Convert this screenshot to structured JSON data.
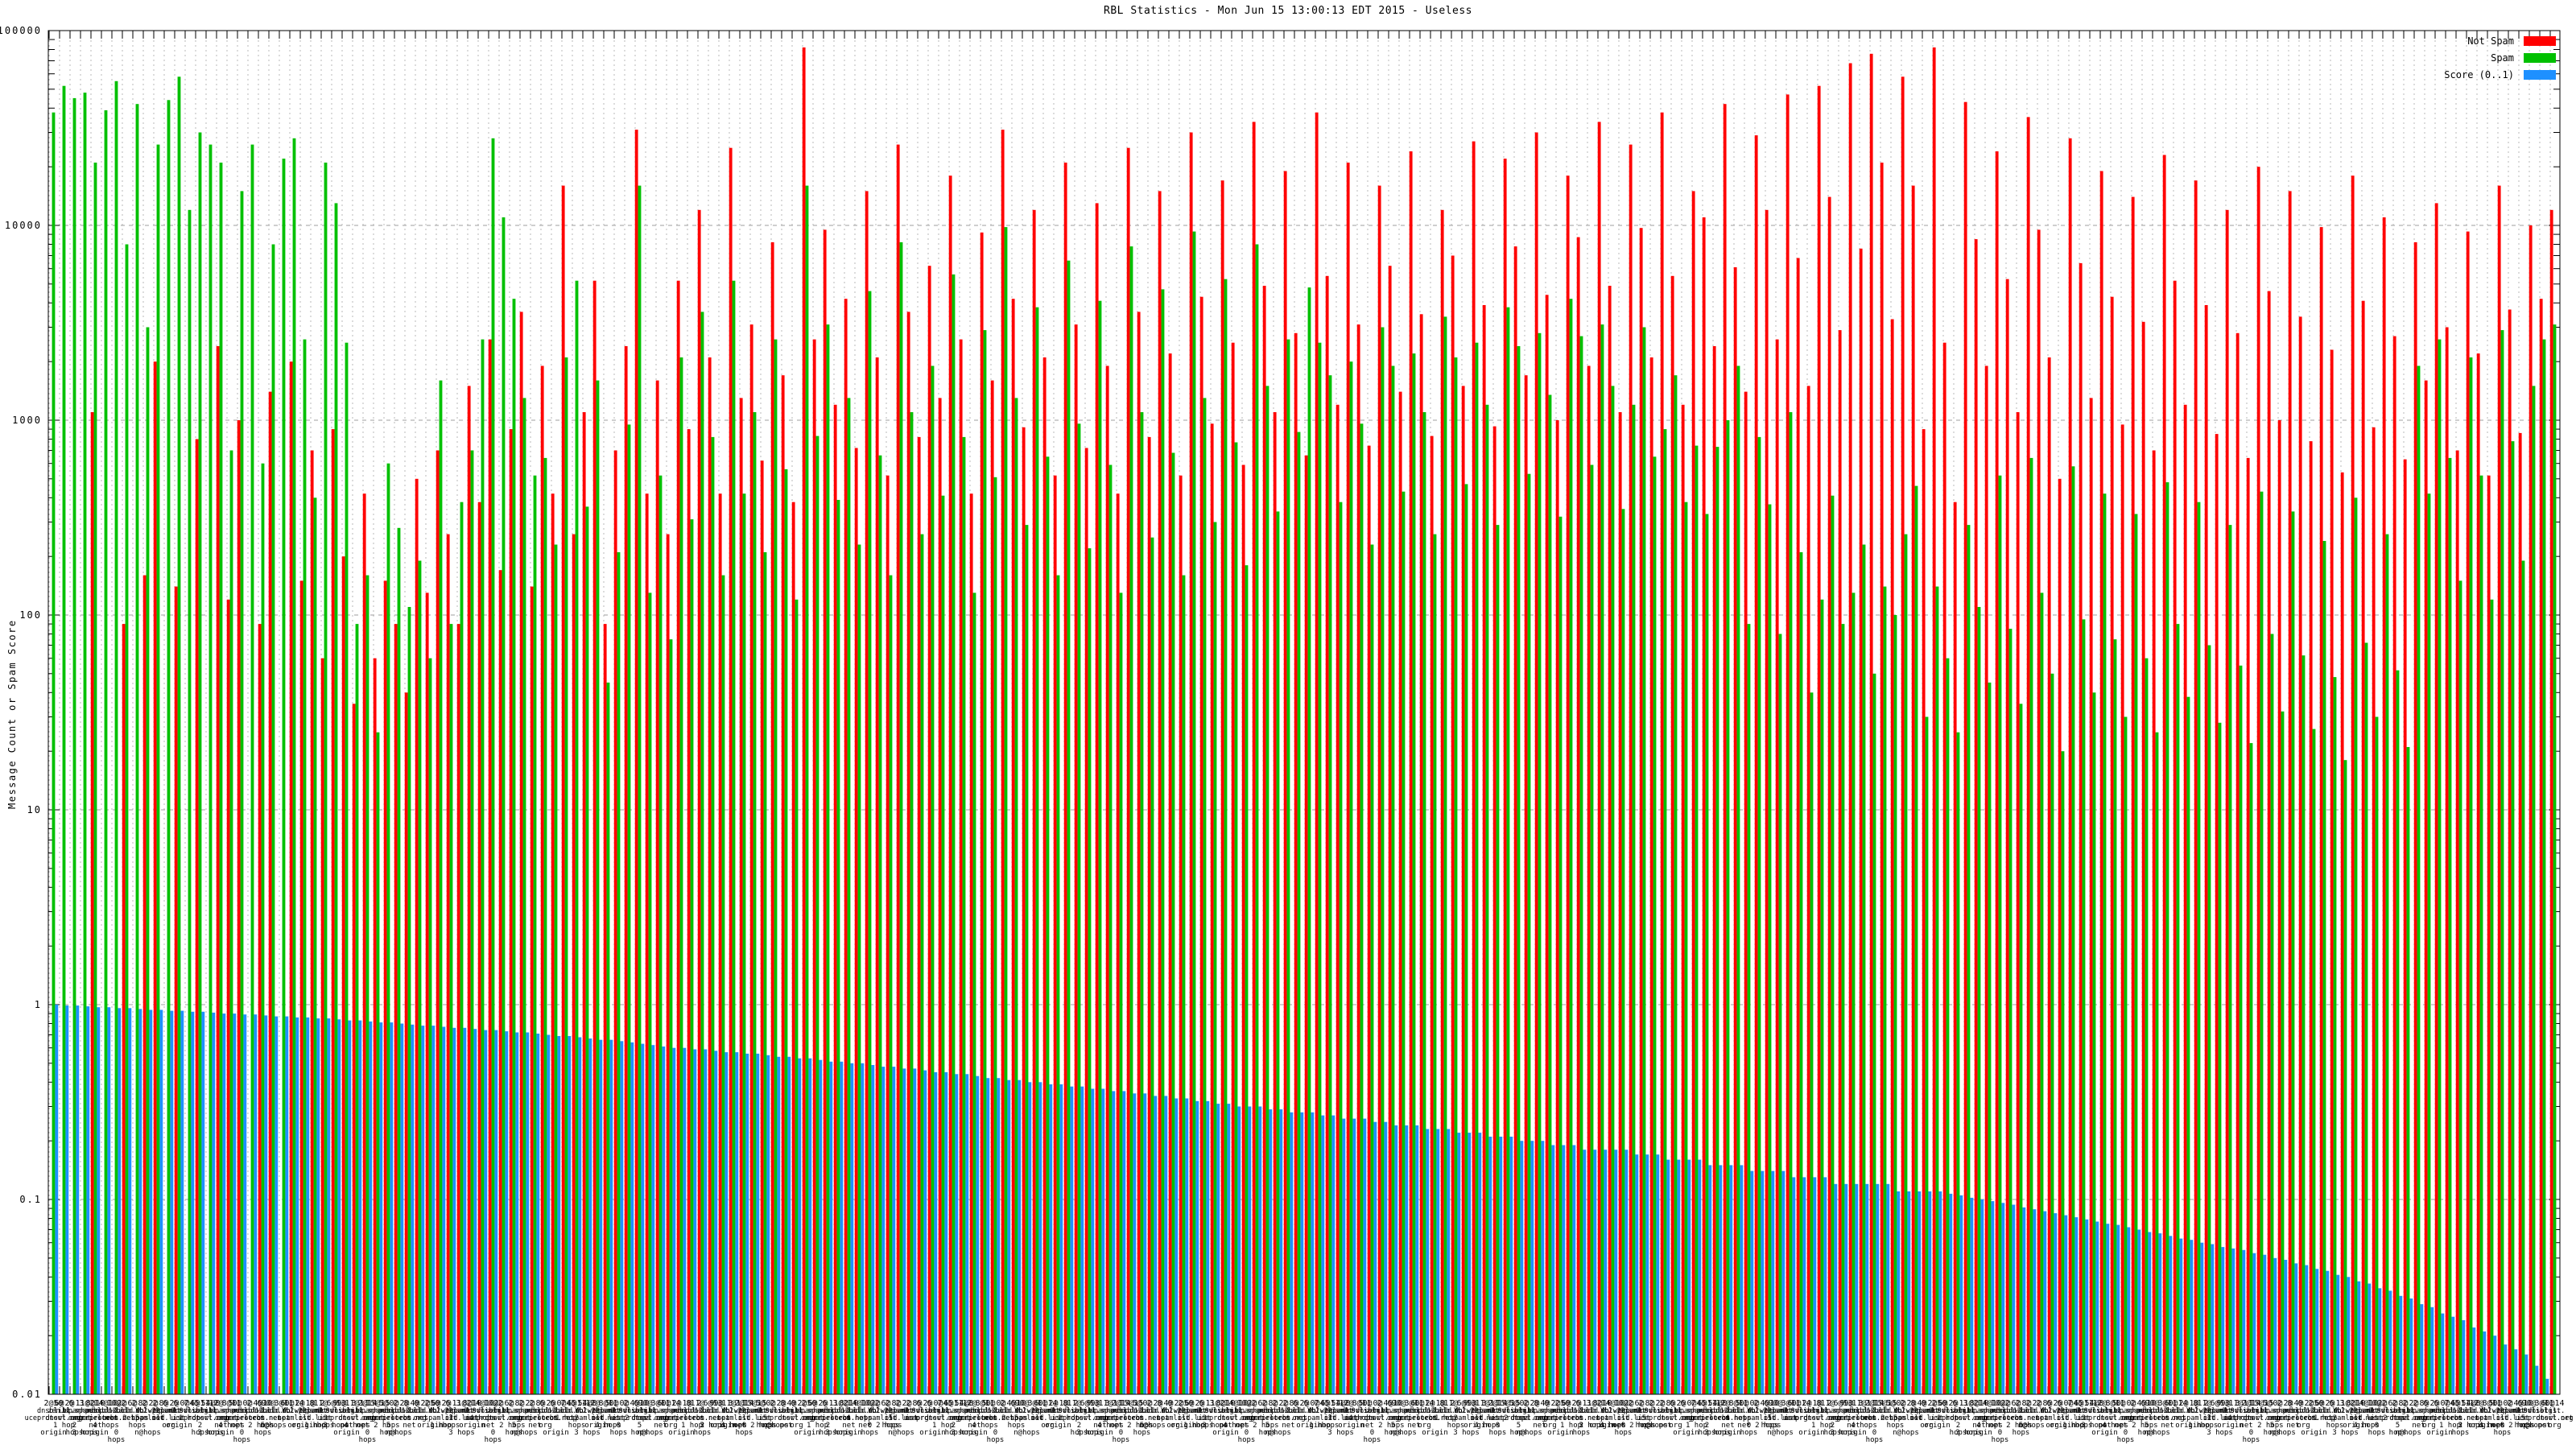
{
  "chart_data": {
    "type": "bar",
    "title": "RBL Statistics - Mon Jun 15 13:00:13 EDT 2015 - Useless",
    "ylabel": "Message Count or Spam Score",
    "xlabel": "",
    "y_scale": "log",
    "ylim": [
      0.01,
      100000
    ],
    "y_ticks": [
      "100000",
      "10000",
      "1000",
      "100",
      "10",
      "1",
      "0.1",
      "0.01"
    ],
    "grid": "dashed",
    "legend_position": "top-right",
    "legend": [
      {
        "label": "Not Spam",
        "color": "#ff0000"
      },
      {
        "label": "Spam",
        "color": "#00c000"
      },
      {
        "label": "Score (0..1)",
        "color": "#1e90ff"
      }
    ],
    "series_names": [
      "Not Spam",
      "Spam",
      "Score (0..1)"
    ],
    "groups_format": [
      "not_spam_count",
      "spam_count",
      "score"
    ],
    "groups": [
      [
        0,
        38000,
        1.0
      ],
      [
        0,
        52000,
        0.99
      ],
      [
        0,
        45000,
        0.99
      ],
      [
        0,
        48000,
        0.98
      ],
      [
        1100,
        21000,
        0.97
      ],
      [
        0,
        39000,
        0.97
      ],
      [
        0,
        55000,
        0.96
      ],
      [
        90,
        8000,
        0.96
      ],
      [
        0,
        42000,
        0.95
      ],
      [
        160,
        3000,
        0.94
      ],
      [
        2000,
        26000,
        0.94
      ],
      [
        0,
        44000,
        0.93
      ],
      [
        140,
        58000,
        0.93
      ],
      [
        0,
        12000,
        0.92
      ],
      [
        800,
        30000,
        0.92
      ],
      [
        0,
        26000,
        0.91
      ],
      [
        2400,
        21000,
        0.9
      ],
      [
        120,
        700,
        0.9
      ],
      [
        1000,
        15000,
        0.89
      ],
      [
        0,
        26000,
        0.89
      ],
      [
        90,
        600,
        0.88
      ],
      [
        1400,
        8000,
        0.87
      ],
      [
        0,
        22000,
        0.87
      ],
      [
        2000,
        28000,
        0.86
      ],
      [
        150,
        2600,
        0.86
      ],
      [
        700,
        400,
        0.85
      ],
      [
        60,
        21000,
        0.85
      ],
      [
        900,
        13000,
        0.84
      ],
      [
        200,
        2500,
        0.83
      ],
      [
        35,
        90,
        0.83
      ],
      [
        420,
        160,
        0.82
      ],
      [
        60,
        25,
        0.81
      ],
      [
        150,
        600,
        0.81
      ],
      [
        90,
        280,
        0.8
      ],
      [
        40,
        110,
        0.79
      ],
      [
        500,
        190,
        0.78
      ],
      [
        130,
        60,
        0.78
      ],
      [
        700,
        1600,
        0.77
      ],
      [
        260,
        90,
        0.76
      ],
      [
        90,
        380,
        0.76
      ],
      [
        1500,
        700,
        0.75
      ],
      [
        380,
        2600,
        0.74
      ],
      [
        2600,
        28000,
        0.74
      ],
      [
        170,
        11000,
        0.73
      ],
      [
        900,
        4200,
        0.72
      ],
      [
        3600,
        1300,
        0.72
      ],
      [
        140,
        520,
        0.71
      ],
      [
        1900,
        640,
        0.7
      ],
      [
        420,
        230,
        0.69
      ],
      [
        16000,
        2100,
        0.69
      ],
      [
        260,
        5200,
        0.68
      ],
      [
        1100,
        360,
        0.67
      ],
      [
        5200,
        1600,
        0.66
      ],
      [
        90,
        45,
        0.66
      ],
      [
        700,
        210,
        0.65
      ],
      [
        2400,
        950,
        0.64
      ],
      [
        31000,
        16000,
        0.63
      ],
      [
        420,
        130,
        0.62
      ],
      [
        1600,
        520,
        0.61
      ],
      [
        260,
        75,
        0.6
      ],
      [
        5200,
        2100,
        0.6
      ],
      [
        900,
        310,
        0.59
      ],
      [
        12000,
        3600,
        0.59
      ],
      [
        2100,
        820,
        0.58
      ],
      [
        420,
        160,
        0.57
      ],
      [
        25000,
        5200,
        0.57
      ],
      [
        1300,
        420,
        0.56
      ],
      [
        3100,
        1100,
        0.56
      ],
      [
        620,
        210,
        0.55
      ],
      [
        8200,
        2600,
        0.54
      ],
      [
        1700,
        560,
        0.54
      ],
      [
        380,
        120,
        0.53
      ],
      [
        82000,
        16000,
        0.53
      ],
      [
        2600,
        830,
        0.52
      ],
      [
        9500,
        3100,
        0.51
      ],
      [
        1200,
        390,
        0.51
      ],
      [
        4200,
        1300,
        0.5
      ],
      [
        720,
        230,
        0.5
      ],
      [
        15000,
        4600,
        0.49
      ],
      [
        2100,
        660,
        0.48
      ],
      [
        520,
        160,
        0.48
      ],
      [
        26000,
        8200,
        0.47
      ],
      [
        3600,
        1100,
        0.47
      ],
      [
        820,
        260,
        0.46
      ],
      [
        6200,
        1900,
        0.45
      ],
      [
        1300,
        410,
        0.45
      ],
      [
        18000,
        5600,
        0.44
      ],
      [
        2600,
        820,
        0.44
      ],
      [
        420,
        130,
        0.43
      ],
      [
        9200,
        2900,
        0.42
      ],
      [
        1600,
        510,
        0.42
      ],
      [
        31000,
        9800,
        0.41
      ],
      [
        4200,
        1300,
        0.41
      ],
      [
        920,
        290,
        0.4
      ],
      [
        12000,
        3800,
        0.4
      ],
      [
        2100,
        650,
        0.39
      ],
      [
        520,
        160,
        0.39
      ],
      [
        21000,
        6600,
        0.38
      ],
      [
        3100,
        960,
        0.38
      ],
      [
        720,
        220,
        0.37
      ],
      [
        13000,
        4100,
        0.37
      ],
      [
        1900,
        590,
        0.36
      ],
      [
        420,
        130,
        0.36
      ],
      [
        25000,
        7800,
        0.35
      ],
      [
        3600,
        1100,
        0.35
      ],
      [
        820,
        250,
        0.34
      ],
      [
        15000,
        4700,
        0.34
      ],
      [
        2200,
        680,
        0.33
      ],
      [
        520,
        160,
        0.33
      ],
      [
        30000,
        9300,
        0.32
      ],
      [
        4300,
        1300,
        0.32
      ],
      [
        960,
        300,
        0.31
      ],
      [
        17000,
        5300,
        0.31
      ],
      [
        2500,
        770,
        0.3
      ],
      [
        590,
        180,
        0.3
      ],
      [
        34000,
        8000,
        0.3
      ],
      [
        4900,
        1500,
        0.29
      ],
      [
        1100,
        340,
        0.29
      ],
      [
        19000,
        2600,
        0.28
      ],
      [
        2800,
        870,
        0.28
      ],
      [
        660,
        4800,
        0.28
      ],
      [
        38000,
        2500,
        0.27
      ],
      [
        5500,
        1700,
        0.27
      ],
      [
        1200,
        380,
        0.26
      ],
      [
        21000,
        2000,
        0.26
      ],
      [
        3100,
        960,
        0.26
      ],
      [
        740,
        230,
        0.25
      ],
      [
        16000,
        3000,
        0.25
      ],
      [
        6200,
        1900,
        0.24
      ],
      [
        1400,
        430,
        0.24
      ],
      [
        24000,
        2200,
        0.24
      ],
      [
        3500,
        1100,
        0.23
      ],
      [
        830,
        260,
        0.23
      ],
      [
        12000,
        3400,
        0.23
      ],
      [
        7000,
        2100,
        0.22
      ],
      [
        1500,
        470,
        0.22
      ],
      [
        27000,
        2500,
        0.22
      ],
      [
        3900,
        1200,
        0.21
      ],
      [
        930,
        290,
        0.21
      ],
      [
        22000,
        3800,
        0.21
      ],
      [
        7800,
        2400,
        0.2
      ],
      [
        1700,
        530,
        0.2
      ],
      [
        30000,
        2800,
        0.2
      ],
      [
        4400,
        1350,
        0.19
      ],
      [
        1000,
        320,
        0.19
      ],
      [
        18000,
        4200,
        0.19
      ],
      [
        8700,
        2700,
        0.18
      ],
      [
        1900,
        590,
        0.18
      ],
      [
        34000,
        3100,
        0.18
      ],
      [
        4900,
        1500,
        0.18
      ],
      [
        1100,
        350,
        0.18
      ],
      [
        26000,
        1200,
        0.17
      ],
      [
        9700,
        3000,
        0.17
      ],
      [
        2100,
        650,
        0.17
      ],
      [
        38000,
        900,
        0.16
      ],
      [
        5500,
        1700,
        0.16
      ],
      [
        1200,
        380,
        0.16
      ],
      [
        15000,
        740,
        0.16
      ],
      [
        11000,
        330,
        0.15
      ],
      [
        2400,
        730,
        0.15
      ],
      [
        42000,
        1000,
        0.15
      ],
      [
        6100,
        1900,
        0.15
      ],
      [
        1400,
        90,
        0.14
      ],
      [
        29000,
        820,
        0.14
      ],
      [
        12000,
        370,
        0.14
      ],
      [
        2600,
        80,
        0.14
      ],
      [
        47000,
        1100,
        0.13
      ],
      [
        6800,
        210,
        0.13
      ],
      [
        1500,
        40,
        0.13
      ],
      [
        52000,
        120,
        0.13
      ],
      [
        14000,
        410,
        0.12
      ],
      [
        2900,
        90,
        0.12
      ],
      [
        68000,
        130,
        0.12
      ],
      [
        7600,
        230,
        0.12
      ],
      [
        76000,
        50,
        0.12
      ],
      [
        21000,
        140,
        0.12
      ],
      [
        3300,
        100,
        0.11
      ],
      [
        58000,
        260,
        0.11
      ],
      [
        16000,
        460,
        0.11
      ],
      [
        900,
        30,
        0.11
      ],
      [
        82000,
        140,
        0.11
      ],
      [
        2500,
        60,
        0.107
      ],
      [
        380,
        25,
        0.105
      ],
      [
        43000,
        290,
        0.102
      ],
      [
        8500,
        110,
        0.1
      ],
      [
        1900,
        45,
        0.098
      ],
      [
        24000,
        520,
        0.096
      ],
      [
        5300,
        85,
        0.094
      ],
      [
        1100,
        35,
        0.091
      ],
      [
        36000,
        640,
        0.089
      ],
      [
        9500,
        130,
        0.087
      ],
      [
        2100,
        50,
        0.085
      ],
      [
        500,
        20,
        0.083
      ],
      [
        28000,
        580,
        0.081
      ],
      [
        6400,
        95,
        0.079
      ],
      [
        1300,
        40,
        0.077
      ],
      [
        19000,
        420,
        0.075
      ],
      [
        4300,
        75,
        0.074
      ],
      [
        950,
        30,
        0.072
      ],
      [
        14000,
        330,
        0.07
      ],
      [
        3200,
        60,
        0.068
      ],
      [
        700,
        25,
        0.067
      ],
      [
        23000,
        480,
        0.065
      ],
      [
        5200,
        90,
        0.063
      ],
      [
        1200,
        38,
        0.062
      ],
      [
        17000,
        380,
        0.06
      ],
      [
        3900,
        70,
        0.059
      ],
      [
        850,
        28,
        0.057
      ],
      [
        12000,
        290,
        0.056
      ],
      [
        2800,
        55,
        0.055
      ],
      [
        640,
        22,
        0.053
      ],
      [
        20000,
        430,
        0.052
      ],
      [
        4600,
        80,
        0.05
      ],
      [
        1000,
        32,
        0.049
      ],
      [
        15000,
        340,
        0.047
      ],
      [
        3400,
        62,
        0.046
      ],
      [
        780,
        26,
        0.044
      ],
      [
        9800,
        240,
        0.043
      ],
      [
        2300,
        48,
        0.041
      ],
      [
        540,
        18,
        0.04
      ],
      [
        18000,
        400,
        0.038
      ],
      [
        4100,
        72,
        0.037
      ],
      [
        920,
        30,
        0.035
      ],
      [
        11000,
        260,
        0.034
      ],
      [
        2700,
        52,
        0.032
      ],
      [
        630,
        21,
        0.031
      ],
      [
        8200,
        1900,
        0.029
      ],
      [
        1600,
        420,
        0.028
      ],
      [
        13000,
        2600,
        0.026
      ],
      [
        3000,
        640,
        0.025
      ],
      [
        700,
        150,
        0.024
      ],
      [
        9300,
        2100,
        0.022
      ],
      [
        2200,
        520,
        0.021
      ],
      [
        520,
        120,
        0.02
      ],
      [
        16000,
        2900,
        0.018
      ],
      [
        3700,
        780,
        0.017
      ],
      [
        860,
        190,
        0.016
      ],
      [
        10000,
        1500,
        0.014
      ],
      [
        4200,
        2600,
        0.012
      ],
      [
        12000,
        3100,
        0.01
      ]
    ],
    "x_tick_fragments": {
      "counts": [
        "2@50",
        "6@ 6",
        "2@ 3",
        "11@2",
        "8@10",
        "14@10",
        "10@2",
        "2@ 2",
        "6@ 2",
        "8@ 2",
        "2@ 6",
        "8@ 6",
        "2@ 7",
        "0@45",
        "6@11",
        "54@0",
        "12@ 5",
        "8@11",
        "0@ 2",
        "0@ 6",
        "4@10",
        "90@ 6",
        "3@11",
        "0@14",
        "2@ 8",
        "1@ 2",
        "11@ 9",
        "6@13",
        "9@ 3",
        "11@11",
        "2@14",
        "15@15",
        "5@ 2",
        "0@ 8",
        "2@ 0",
        "4@ 2"
      ],
      "names": [
        "dnsbl-1.uceprotect.net",
        "list.dnswl.org",
        "zen.spamhaus.org",
        "bl.spamcop.net",
        "psbl.surriel.com",
        "dnsbl-2.uceprotect.net",
        "dnsbl.sorbs.net",
        "12.old.Y.",
        "iadb.Y.2.12",
        "sbl-2.spamlist",
        "db.wpbl.net",
        "spam1.old.list",
        "spam2.0.list",
        "dnswl.org"
      ],
      "hops": [
        "origin",
        "1 hop",
        "2 hops",
        "3 hops",
        "net origin",
        "4 hops",
        "0 hops",
        "net 2 hops",
        "5 hops",
        "n@hops",
        "net",
        "org"
      ]
    }
  }
}
